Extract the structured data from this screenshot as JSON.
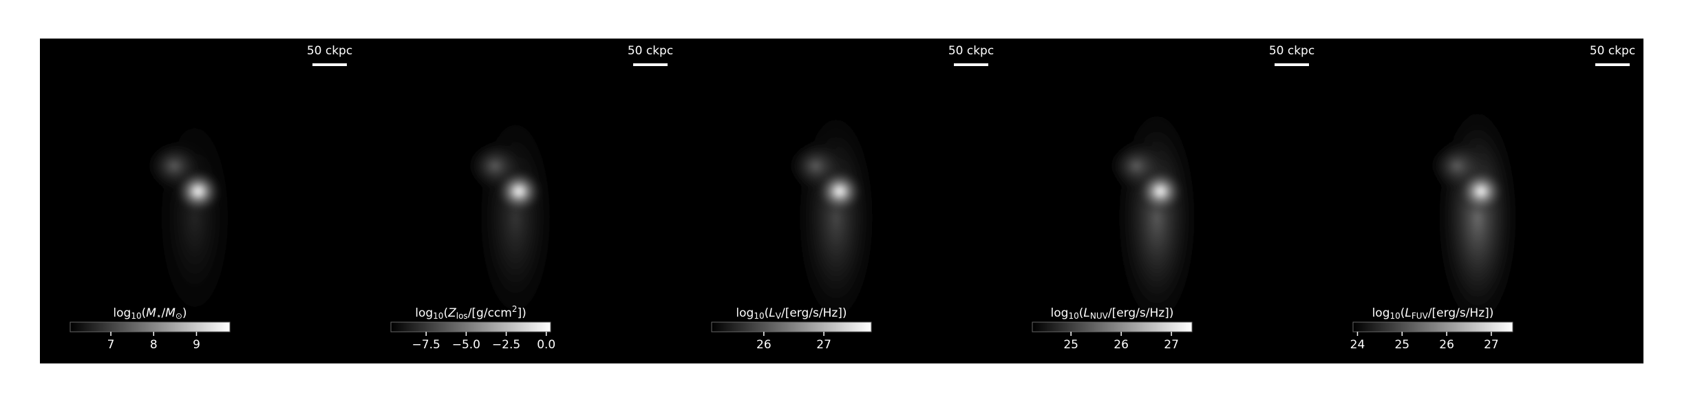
{
  "chart_data": [
    {
      "type": "image",
      "scale_bar_label": "50 ckpc",
      "colorbar": {
        "label_parts": [
          [
            "log",
            ""
          ],
          [
            "10",
            "sub"
          ],
          [
            "(",
            ""
          ],
          [
            "M",
            "i"
          ],
          [
            "⋆",
            "sub"
          ],
          [
            "/",
            ""
          ],
          [
            "M",
            "i"
          ],
          [
            "⊙",
            "sub"
          ],
          [
            ")",
            ""
          ]
        ],
        "lim": [
          6.05,
          9.78
        ],
        "ticks": [
          7,
          8,
          9
        ]
      }
    },
    {
      "type": "image",
      "scale_bar_label": "50 ckpc",
      "colorbar": {
        "label_parts": [
          [
            "log",
            ""
          ],
          [
            "10",
            "sub"
          ],
          [
            "(",
            ""
          ],
          [
            "Z",
            "i"
          ],
          [
            "los",
            "sub"
          ],
          [
            "/[g/ccm",
            ""
          ],
          [
            "2",
            "sup"
          ],
          [
            "])",
            ""
          ]
        ],
        "lim": [
          -9.7,
          0.27
        ],
        "ticks": [
          {
            "value": -7.5,
            "label": "−7.5"
          },
          {
            "value": -5,
            "label": "−5.0"
          },
          {
            "value": -2.5,
            "label": "−2.5"
          },
          {
            "value": 0,
            "label": "0.0"
          }
        ]
      }
    },
    {
      "type": "image",
      "scale_bar_label": "50 ckpc",
      "colorbar": {
        "label_parts": [
          [
            "log",
            ""
          ],
          [
            "10",
            "sub"
          ],
          [
            "(",
            ""
          ],
          [
            "L",
            "i"
          ],
          [
            "V",
            "sub"
          ],
          [
            "/[erg/s/Hz])",
            ""
          ]
        ],
        "lim": [
          25.13,
          27.79
        ],
        "ticks": [
          26,
          27
        ]
      }
    },
    {
      "type": "image",
      "scale_bar_label": "50 ckpc",
      "colorbar": {
        "label_parts": [
          [
            "log",
            ""
          ],
          [
            "10",
            "sub"
          ],
          [
            "(",
            ""
          ],
          [
            "L",
            "i"
          ],
          [
            "NUV",
            "sub"
          ],
          [
            "/[erg/s/Hz])",
            ""
          ]
        ],
        "lim": [
          24.23,
          27.41
        ],
        "ticks": [
          25,
          26,
          27
        ]
      }
    },
    {
      "type": "image",
      "scale_bar_label": "50 ckpc",
      "colorbar": {
        "label_parts": [
          [
            "log",
            ""
          ],
          [
            "10",
            "sub"
          ],
          [
            "(",
            ""
          ],
          [
            "L",
            "i"
          ],
          [
            "FUV",
            "sub"
          ],
          [
            "/[erg/s/Hz])",
            ""
          ]
        ],
        "lim": [
          23.9,
          27.48
        ],
        "ticks": [
          24,
          25,
          26,
          27
        ]
      }
    }
  ]
}
